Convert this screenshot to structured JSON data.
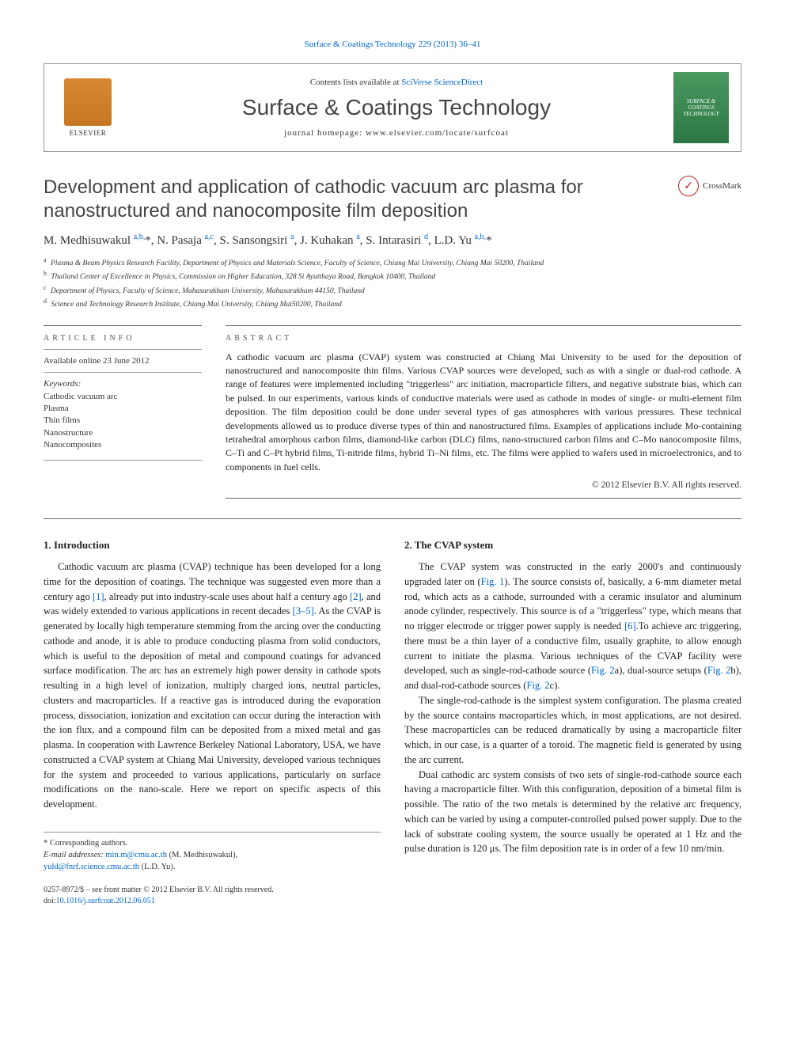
{
  "top_link": {
    "text": "Surface & Coatings Technology 229 (2013) 36–41"
  },
  "header": {
    "contents_prefix": "Contents lists available at ",
    "contents_link": "SciVerse ScienceDirect",
    "journal_title": "Surface & Coatings Technology",
    "homepage_prefix": "journal homepage: ",
    "homepage_url": "www.elsevier.com/locate/surfcoat",
    "publisher": "ELSEVIER",
    "cover_text": "SURFACE & COATINGS TECHNOLOGY"
  },
  "crossmark": "CrossMark",
  "title": "Development and application of cathodic vacuum arc plasma for nanostructured and nanocomposite film deposition",
  "authors_html": "M. Medhisuwakul <sup>a,b,</sup><span class='star'>*</span>, N. Pasaja <sup>a,c</sup>, S. Sansongsiri <sup>a</sup>, J. Kuhakan <sup>a</sup>, S. Intarasiri <sup>d</sup>, L.D. Yu <sup>a,b,</sup><span class='star'>*</span>",
  "affiliations": [
    {
      "sup": "a",
      "text": "Plasma & Beam Physics Research Facility, Department of Physics and Materials Science, Faculty of Science, Chiang Mai University, Chiang Mai 50200, Thailand"
    },
    {
      "sup": "b",
      "text": "Thailand Center of Excellence in Physics, Commission on Higher Education, 328 Si Ayutthaya Road, Bangkok 10400, Thailand"
    },
    {
      "sup": "c",
      "text": "Department of Physics, Faculty of Science, Mahasarakham University, Mahasarakham 44150, Thailand"
    },
    {
      "sup": "d",
      "text": "Science and Technology Research Institute, Chiang Mai University, Chiang Mai50200, Thailand"
    }
  ],
  "article_info": {
    "header": "ARTICLE INFO",
    "available": "Available online 23 June 2012",
    "keywords_label": "Keywords:",
    "keywords": [
      "Cathodic vacuum arc",
      "Plasma",
      "Thin films",
      "Nanostructure",
      "Nanocomposites"
    ]
  },
  "abstract": {
    "header": "ABSTRACT",
    "text": "A cathodic vacuum arc plasma (CVAP) system was constructed at Chiang Mai University to be used for the deposition of nanostructured and nanocomposite thin films. Various CVAP sources were developed, such as with a single or dual-rod cathode. A range of features were implemented including \"triggerless\" arc initiation, macroparticle filters, and negative substrate bias, which can be pulsed. In our experiments, various kinds of conductive materials were used as cathode in modes of single- or multi-element film deposition. The film deposition could be done under several types of gas atmospheres with various pressures. These technical developments allowed us to produce diverse types of thin and nanostructured films. Examples of applications include Mo-containing tetrahedral amorphous carbon films, diamond-like carbon (DLC) films, nano-structured carbon films and C–Mo nanocomposite films, C–Ti and C–Pt hybrid films, Ti-nitride films, hybrid Ti–Ni films, etc. The films were applied to wafers used in microelectronics, and to components in fuel cells.",
    "copyright": "© 2012 Elsevier B.V. All rights reserved."
  },
  "sections": {
    "intro": {
      "heading": "1. Introduction",
      "para": "Cathodic vacuum arc plasma (CVAP) technique has been developed for a long time for the deposition of coatings. The technique was suggested even more than a century ago <a href='#'>[1]</a>, already put into industry-scale uses about half a century ago <a href='#'>[2]</a>, and was widely extended to various applications in recent decades <a href='#'>[3–5]</a>. As the CVAP is generated by locally high temperature stemming from the arcing over the conducting cathode and anode, it is able to produce conducting plasma from solid conductors, which is useful to the deposition of metal and compound coatings for advanced surface modification. The arc has an extremely high power density in cathode spots resulting in a high level of ionization, multiply charged ions, neutral particles, clusters and macroparticles. If a reactive gas is introduced during the evaporation process, dissociation, ionization and excitation can occur during the interaction with the ion flux, and a compound film can be deposited from a mixed metal and gas plasma. In cooperation with Lawrence Berkeley National Laboratory, USA, we have constructed a CVAP system at Chiang Mai University, developed various techniques for the system and proceeded to various applications, particularly on surface modifications on the nano-scale. Here we report on specific aspects of this development."
    },
    "cvap": {
      "heading": "2. The CVAP system",
      "p1": "The CVAP system was constructed in the early 2000's and continuously upgraded later on (<a href='#'>Fig. 1</a>). The source consists of, basically, a 6-mm diameter metal rod, which acts as a cathode, surrounded with a ceramic insulator and aluminum anode cylinder, respectively. This source is of a \"triggerless\" type, which means that no trigger electrode or trigger power supply is needed <a href='#'>[6]</a>.To achieve arc triggering, there must be a thin layer of a conductive film, usually graphite, to allow enough current to initiate the plasma. Various techniques of the CVAP facility were developed, such as single-rod-cathode source (<a href='#'>Fig. 2</a>a), dual-source setups (<a href='#'>Fig. 2</a>b), and dual-rod-cathode sources (<a href='#'>Fig. 2</a>c).",
      "p2": "The single-rod-cathode is the simplest system configuration. The plasma created by the source contains macroparticles which, in most applications, are not desired. These macroparticles can be reduced dramatically by using a macroparticle filter which, in our case, is a quarter of a toroid. The magnetic field is generated by using the arc current.",
      "p3": "Dual cathodic arc system consists of two sets of single-rod-cathode source each having a macroparticle filter. With this configuration, deposition of a bimetal film is possible. The ratio of the two metals is determined by the relative arc frequency, which can be varied by using a computer-controlled pulsed power supply. Due to the lack of substrate cooling system, the source usually be operated at 1 Hz and the pulse duration is 120 μs. The film deposition rate is in order of a few 10 nm/min."
    }
  },
  "footnotes": {
    "corr": "* Corresponding authors.",
    "email_label": "E-mail addresses: ",
    "email1": "min.m@cmu.ac.th",
    "email1_name": " (M. Medhisuwakul),",
    "email2": "yuld@fnrf.science.cmu.ac.th",
    "email2_name": " (L.D. Yu)."
  },
  "doi": {
    "issn": "0257-8972/$ – see front matter © 2012 Elsevier B.V. All rights reserved.",
    "doi_label": "doi:",
    "doi_value": "10.1016/j.surfcoat.2012.06.051"
  },
  "colors": {
    "link": "#0066cc",
    "text": "#1a1a1a",
    "muted": "#555555",
    "border": "#666666"
  }
}
